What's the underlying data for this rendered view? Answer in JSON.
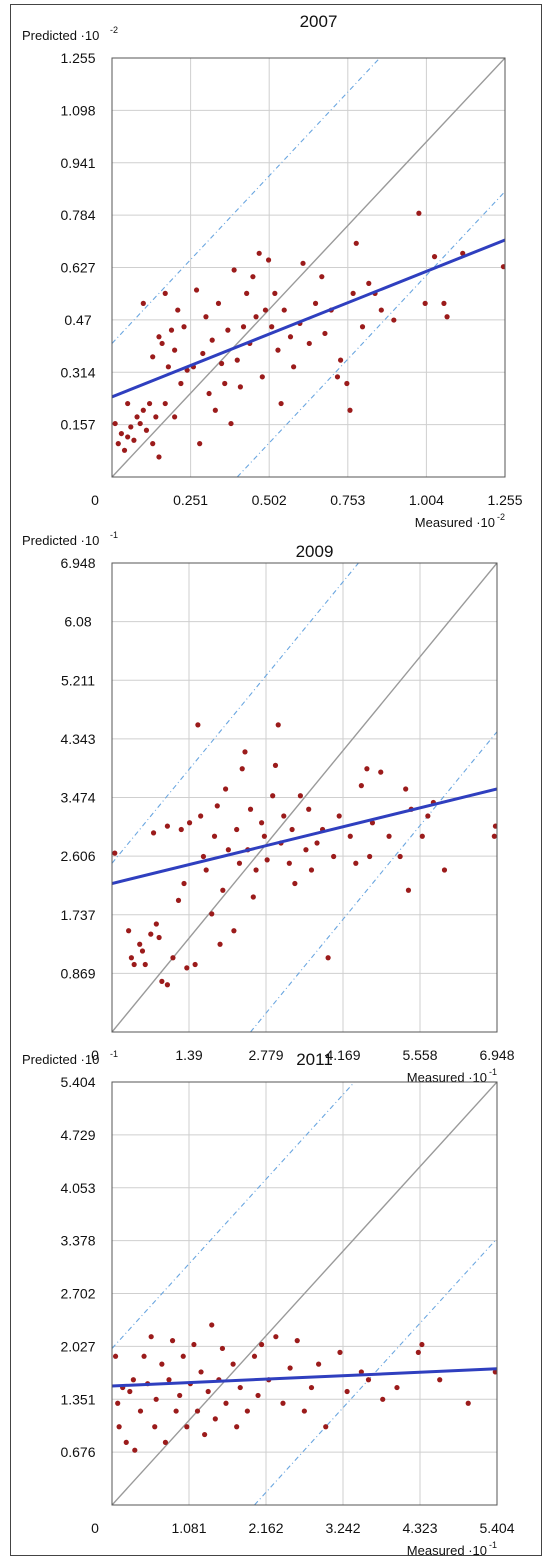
{
  "chart_data": [
    {
      "type": "scatter",
      "title": "2007",
      "ylabel": "Predicted ·10",
      "ylabel_exp": "-2",
      "xlabel": "Measured ·10",
      "xlabel_exp": "-2",
      "xlim": [
        0,
        1.255
      ],
      "ylim": [
        0,
        1.255
      ],
      "xticks": [
        "0.251",
        "0.502",
        "0.753",
        "1.004",
        "1.255"
      ],
      "yticks": [
        "0.157",
        "0.314",
        "0.47",
        "0.627",
        "0.784",
        "0.941",
        "1.098",
        "1.255"
      ],
      "origin_label": "0",
      "grid": true,
      "reference_lines": {
        "identity": true,
        "band_offset": 0.4
      },
      "fit_line": {
        "start": [
          0,
          0.24
        ],
        "end": [
          1.255,
          0.71
        ]
      },
      "colors": {
        "points": "#9b1b1b",
        "fit": "#2f3fbf",
        "identity": "#9a9a9a",
        "band": "#6aa6e0",
        "grid": "#cfcfcf"
      },
      "points": [
        [
          0.01,
          0.16
        ],
        [
          0.02,
          0.1
        ],
        [
          0.03,
          0.13
        ],
        [
          0.04,
          0.08
        ],
        [
          0.05,
          0.12
        ],
        [
          0.05,
          0.22
        ],
        [
          0.06,
          0.15
        ],
        [
          0.07,
          0.11
        ],
        [
          0.08,
          0.18
        ],
        [
          0.09,
          0.16
        ],
        [
          0.1,
          0.52
        ],
        [
          0.1,
          0.2
        ],
        [
          0.11,
          0.14
        ],
        [
          0.12,
          0.22
        ],
        [
          0.13,
          0.1
        ],
        [
          0.13,
          0.36
        ],
        [
          0.14,
          0.18
        ],
        [
          0.15,
          0.42
        ],
        [
          0.15,
          0.06
        ],
        [
          0.16,
          0.4
        ],
        [
          0.17,
          0.55
        ],
        [
          0.17,
          0.22
        ],
        [
          0.18,
          0.33
        ],
        [
          0.19,
          0.44
        ],
        [
          0.2,
          0.18
        ],
        [
          0.2,
          0.38
        ],
        [
          0.21,
          0.5
        ],
        [
          0.22,
          0.28
        ],
        [
          0.23,
          0.45
        ],
        [
          0.24,
          0.32
        ],
        [
          0.26,
          0.33
        ],
        [
          0.27,
          0.56
        ],
        [
          0.28,
          0.1
        ],
        [
          0.29,
          0.37
        ],
        [
          0.3,
          0.48
        ],
        [
          0.31,
          0.25
        ],
        [
          0.32,
          0.41
        ],
        [
          0.33,
          0.2
        ],
        [
          0.34,
          0.52
        ],
        [
          0.35,
          0.34
        ],
        [
          0.36,
          0.28
        ],
        [
          0.37,
          0.44
        ],
        [
          0.38,
          0.16
        ],
        [
          0.39,
          0.62
        ],
        [
          0.4,
          0.35
        ],
        [
          0.41,
          0.27
        ],
        [
          0.42,
          0.45
        ],
        [
          0.43,
          0.55
        ],
        [
          0.44,
          0.4
        ],
        [
          0.45,
          0.6
        ],
        [
          0.46,
          0.48
        ],
        [
          0.47,
          0.67
        ],
        [
          0.48,
          0.3
        ],
        [
          0.49,
          0.5
        ],
        [
          0.5,
          0.65
        ],
        [
          0.51,
          0.45
        ],
        [
          0.52,
          0.55
        ],
        [
          0.53,
          0.38
        ],
        [
          0.54,
          0.22
        ],
        [
          0.55,
          0.5
        ],
        [
          0.57,
          0.42
        ],
        [
          0.58,
          0.33
        ],
        [
          0.6,
          0.46
        ],
        [
          0.61,
          0.64
        ],
        [
          0.63,
          0.4
        ],
        [
          0.65,
          0.52
        ],
        [
          0.67,
          0.6
        ],
        [
          0.68,
          0.43
        ],
        [
          0.7,
          0.5
        ],
        [
          0.72,
          0.3
        ],
        [
          0.73,
          0.35
        ],
        [
          0.75,
          0.28
        ],
        [
          0.76,
          0.2
        ],
        [
          0.77,
          0.55
        ],
        [
          0.78,
          0.7
        ],
        [
          0.8,
          0.45
        ],
        [
          0.82,
          0.58
        ],
        [
          0.84,
          0.55
        ],
        [
          0.86,
          0.5
        ],
        [
          0.9,
          0.47
        ],
        [
          0.98,
          0.79
        ],
        [
          1.0,
          0.52
        ],
        [
          1.03,
          0.66
        ],
        [
          1.06,
          0.52
        ],
        [
          1.07,
          0.48
        ],
        [
          1.12,
          0.67
        ],
        [
          1.25,
          0.63
        ]
      ]
    },
    {
      "type": "scatter",
      "title": "2009",
      "ylabel": "Predicted ·10",
      "ylabel_exp": "-1",
      "xlabel": "Measured ·10",
      "xlabel_exp": "-1",
      "xlim": [
        0,
        6.948
      ],
      "ylim": [
        0,
        6.948
      ],
      "xticks": [
        "1.39",
        "2.779",
        "4.169",
        "5.558",
        "6.948"
      ],
      "yticks": [
        "0.869",
        "1.737",
        "2.606",
        "3.474",
        "4.343",
        "5.211",
        "6.08",
        "6.948"
      ],
      "origin_label": "0",
      "grid": true,
      "reference_lines": {
        "identity": true,
        "band_offset": 2.5
      },
      "fit_line": {
        "start": [
          0,
          2.2
        ],
        "end": [
          6.948,
          3.6
        ]
      },
      "colors": {
        "points": "#9b1b1b",
        "fit": "#2f3fbf",
        "identity": "#9a9a9a",
        "band": "#6aa6e0",
        "grid": "#cfcfcf"
      },
      "points": [
        [
          0.05,
          2.65
        ],
        [
          0.3,
          1.5
        ],
        [
          0.35,
          1.1
        ],
        [
          0.4,
          1.0
        ],
        [
          0.5,
          1.3
        ],
        [
          0.55,
          1.2
        ],
        [
          0.6,
          1.0
        ],
        [
          0.7,
          1.45
        ],
        [
          0.75,
          2.95
        ],
        [
          0.8,
          1.6
        ],
        [
          0.85,
          1.4
        ],
        [
          0.9,
          0.75
        ],
        [
          1.0,
          0.7
        ],
        [
          1.0,
          3.05
        ],
        [
          1.1,
          1.1
        ],
        [
          1.2,
          1.95
        ],
        [
          1.25,
          3.0
        ],
        [
          1.3,
          2.2
        ],
        [
          1.35,
          0.95
        ],
        [
          1.4,
          3.1
        ],
        [
          1.5,
          1.0
        ],
        [
          1.55,
          4.55
        ],
        [
          1.6,
          3.2
        ],
        [
          1.65,
          2.6
        ],
        [
          1.7,
          2.4
        ],
        [
          1.8,
          1.75
        ],
        [
          1.85,
          2.9
        ],
        [
          1.9,
          3.35
        ],
        [
          1.95,
          1.3
        ],
        [
          2.0,
          2.1
        ],
        [
          2.05,
          3.6
        ],
        [
          2.1,
          2.7
        ],
        [
          2.2,
          1.5
        ],
        [
          2.25,
          3.0
        ],
        [
          2.3,
          2.5
        ],
        [
          2.35,
          3.9
        ],
        [
          2.4,
          4.15
        ],
        [
          2.45,
          2.7
        ],
        [
          2.5,
          3.3
        ],
        [
          2.55,
          2.0
        ],
        [
          2.6,
          2.4
        ],
        [
          2.7,
          3.1
        ],
        [
          2.75,
          2.9
        ],
        [
          2.8,
          2.55
        ],
        [
          2.9,
          3.5
        ],
        [
          2.95,
          3.95
        ],
        [
          3.0,
          4.55
        ],
        [
          3.05,
          2.8
        ],
        [
          3.1,
          3.2
        ],
        [
          3.2,
          2.5
        ],
        [
          3.25,
          3.0
        ],
        [
          3.3,
          2.2
        ],
        [
          3.4,
          3.5
        ],
        [
          3.5,
          2.7
        ],
        [
          3.55,
          3.3
        ],
        [
          3.6,
          2.4
        ],
        [
          3.7,
          2.8
        ],
        [
          3.8,
          3.0
        ],
        [
          3.9,
          1.1
        ],
        [
          4.0,
          2.6
        ],
        [
          4.1,
          3.2
        ],
        [
          4.3,
          2.9
        ],
        [
          4.4,
          2.5
        ],
        [
          4.5,
          3.65
        ],
        [
          4.6,
          3.9
        ],
        [
          4.65,
          2.6
        ],
        [
          4.7,
          3.1
        ],
        [
          4.85,
          3.85
        ],
        [
          5.0,
          2.9
        ],
        [
          5.2,
          2.6
        ],
        [
          5.3,
          3.6
        ],
        [
          5.35,
          2.1
        ],
        [
          5.4,
          3.3
        ],
        [
          5.6,
          2.9
        ],
        [
          5.7,
          3.2
        ],
        [
          5.8,
          3.4
        ],
        [
          6.0,
          2.4
        ],
        [
          6.9,
          2.9
        ],
        [
          6.92,
          3.05
        ]
      ]
    },
    {
      "type": "scatter",
      "title": "2011",
      "ylabel": "Predicted ·10",
      "ylabel_exp": "-1",
      "xlabel": "Measured ·10",
      "xlabel_exp": "-1",
      "xlim": [
        0,
        5.404
      ],
      "ylim": [
        0,
        5.404
      ],
      "xticks": [
        "1.081",
        "2.162",
        "3.242",
        "4.323",
        "5.404"
      ],
      "yticks": [
        "0.676",
        "1.351",
        "2.027",
        "2.702",
        "3.378",
        "4.053",
        "4.729",
        "5.404"
      ],
      "origin_label": "0",
      "grid": true,
      "reference_lines": {
        "identity": true,
        "band_offset": 2.0
      },
      "fit_line": {
        "start": [
          0,
          1.52
        ],
        "end": [
          5.404,
          1.74
        ]
      },
      "colors": {
        "points": "#9b1b1b",
        "fit": "#2f3fbf",
        "identity": "#9a9a9a",
        "band": "#6aa6e0",
        "grid": "#cfcfcf"
      },
      "points": [
        [
          0.05,
          1.9
        ],
        [
          0.08,
          1.3
        ],
        [
          0.1,
          1.0
        ],
        [
          0.15,
          1.5
        ],
        [
          0.2,
          0.8
        ],
        [
          0.25,
          1.45
        ],
        [
          0.3,
          1.6
        ],
        [
          0.32,
          0.7
        ],
        [
          0.4,
          1.2
        ],
        [
          0.45,
          1.9
        ],
        [
          0.5,
          1.55
        ],
        [
          0.55,
          2.15
        ],
        [
          0.6,
          1.0
        ],
        [
          0.62,
          1.35
        ],
        [
          0.7,
          1.8
        ],
        [
          0.75,
          0.8
        ],
        [
          0.8,
          1.6
        ],
        [
          0.85,
          2.1
        ],
        [
          0.9,
          1.2
        ],
        [
          0.95,
          1.4
        ],
        [
          1.0,
          1.9
        ],
        [
          1.05,
          1.0
        ],
        [
          1.1,
          1.55
        ],
        [
          1.15,
          2.05
        ],
        [
          1.2,
          1.2
        ],
        [
          1.25,
          1.7
        ],
        [
          1.3,
          0.9
        ],
        [
          1.35,
          1.45
        ],
        [
          1.4,
          2.3
        ],
        [
          1.45,
          1.1
        ],
        [
          1.5,
          1.6
        ],
        [
          1.55,
          2.0
        ],
        [
          1.6,
          1.3
        ],
        [
          1.7,
          1.8
        ],
        [
          1.75,
          1.0
        ],
        [
          1.8,
          1.5
        ],
        [
          1.9,
          1.2
        ],
        [
          2.0,
          1.9
        ],
        [
          2.05,
          1.4
        ],
        [
          2.1,
          2.05
        ],
        [
          2.2,
          1.6
        ],
        [
          2.3,
          2.15
        ],
        [
          2.4,
          1.3
        ],
        [
          2.5,
          1.75
        ],
        [
          2.6,
          2.1
        ],
        [
          2.7,
          1.2
        ],
        [
          2.8,
          1.5
        ],
        [
          2.9,
          1.8
        ],
        [
          3.0,
          1.0
        ],
        [
          3.2,
          1.95
        ],
        [
          3.3,
          1.45
        ],
        [
          3.5,
          1.7
        ],
        [
          3.6,
          1.6
        ],
        [
          3.8,
          1.35
        ],
        [
          4.0,
          1.5
        ],
        [
          4.3,
          1.95
        ],
        [
          4.35,
          2.05
        ],
        [
          4.6,
          1.6
        ],
        [
          5.0,
          1.3
        ],
        [
          5.38,
          1.7
        ]
      ]
    }
  ]
}
